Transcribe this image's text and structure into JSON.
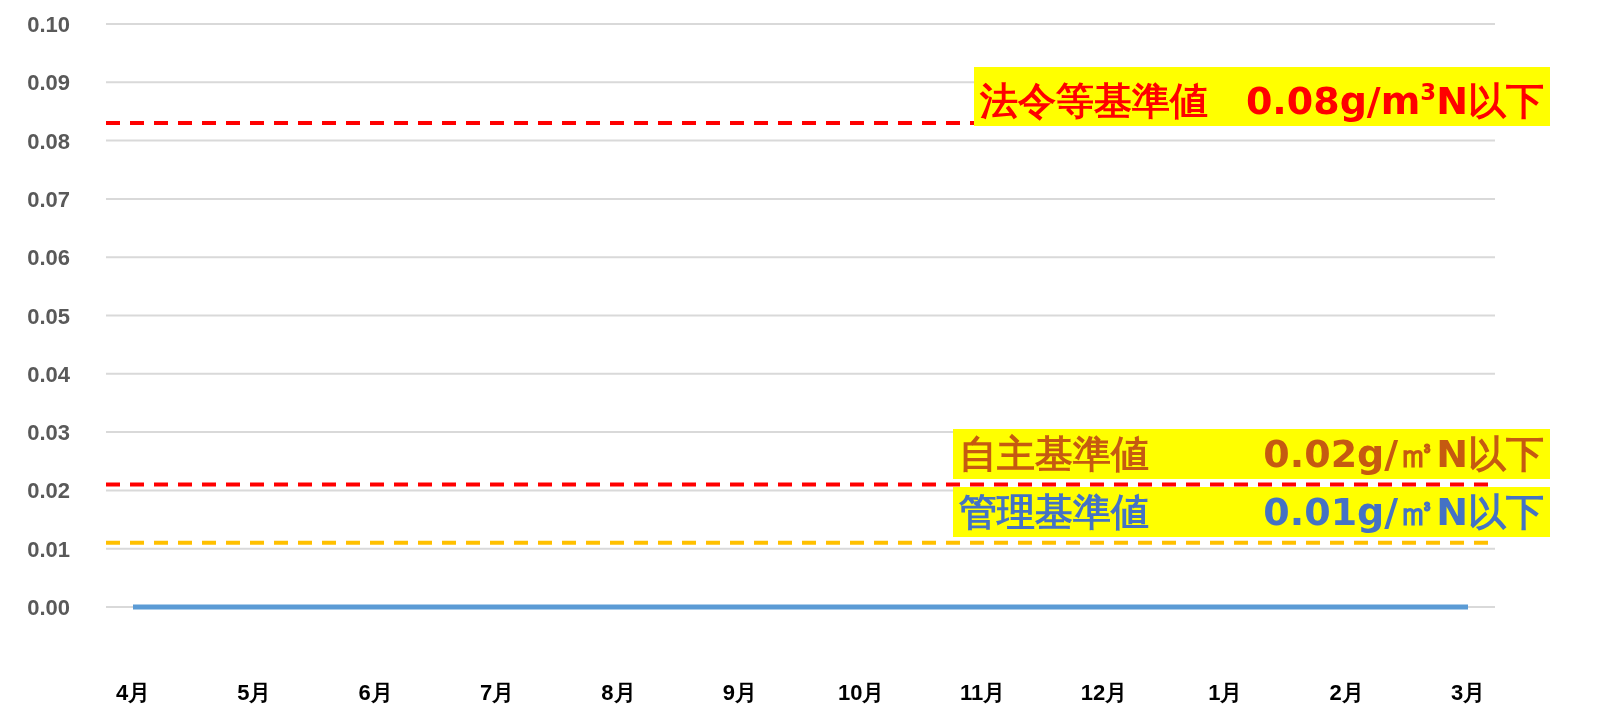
{
  "chart_data": {
    "type": "line",
    "categories": [
      "4月",
      "5月",
      "6月",
      "7月",
      "8月",
      "9月",
      "10月",
      "11月",
      "12月",
      "1月",
      "2月",
      "3月"
    ],
    "series": [
      {
        "color": "#5b9bd5",
        "values": [
          0,
          0,
          0,
          0,
          0,
          0,
          0,
          0,
          0,
          0,
          0,
          0
        ]
      }
    ],
    "ylim": [
      0,
      0.1
    ],
    "yticks": [
      {
        "value": 0,
        "label": "0.00"
      },
      {
        "value": 0.01,
        "label": "0.01"
      },
      {
        "value": 0.02,
        "label": "0.02"
      },
      {
        "value": 0.03,
        "label": "0.03"
      },
      {
        "value": 0.04,
        "label": "0.04"
      },
      {
        "value": 0.05,
        "label": "0.05"
      },
      {
        "value": 0.06,
        "label": "0.06"
      },
      {
        "value": 0.07,
        "label": "0.07"
      },
      {
        "value": 0.08,
        "label": "0.08"
      },
      {
        "value": 0.09,
        "label": "0.09"
      },
      {
        "value": 0.1,
        "label": "0.10"
      }
    ],
    "grid": "y",
    "ref_lines": [
      {
        "axis": "y",
        "value": 0.083,
        "label": "法令等基準値　0.08g/m$^{3}$N以下",
        "color": "#ff0000",
        "line_style": "dashed"
      },
      {
        "axis": "y",
        "value": 0.021,
        "label": "自主基準値　　　0.02g/㎥N以下",
        "color": "#ff0000",
        "line_style": "dashed"
      },
      {
        "axis": "y",
        "value": 0.011,
        "label": "管理基準値　　　0.01g/㎥N以下",
        "color": "#ffc000",
        "line_style": "dashed"
      }
    ]
  }
}
